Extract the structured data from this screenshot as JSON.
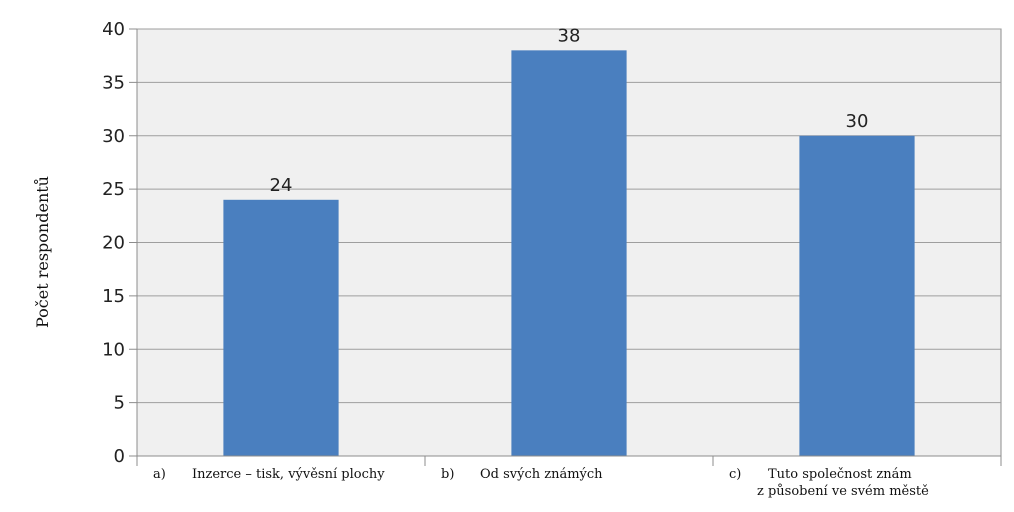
{
  "chart_data": {
    "type": "bar",
    "categories": [
      {
        "marker": "a)",
        "lines": [
          "Inzerce – tisk, vývěsní plochy"
        ]
      },
      {
        "marker": "b)",
        "lines": [
          "Od svých známých"
        ]
      },
      {
        "marker": "c)",
        "lines": [
          "Tuto společnost znám",
          "z působení ve svém městě"
        ]
      }
    ],
    "values": [
      24,
      38,
      30
    ],
    "ylabel": "Počet respondentů",
    "xlabel": "",
    "ylim": [
      0,
      40
    ],
    "yticks": [
      0,
      5,
      10,
      15,
      20,
      25,
      30,
      35,
      40
    ],
    "grid": true,
    "legend": "none",
    "colors": {
      "bar": "#4a7fbf",
      "plot_background": "#f0f0f0",
      "gridline": "#9e9e9e",
      "frame": "#8c8c8c"
    }
  }
}
